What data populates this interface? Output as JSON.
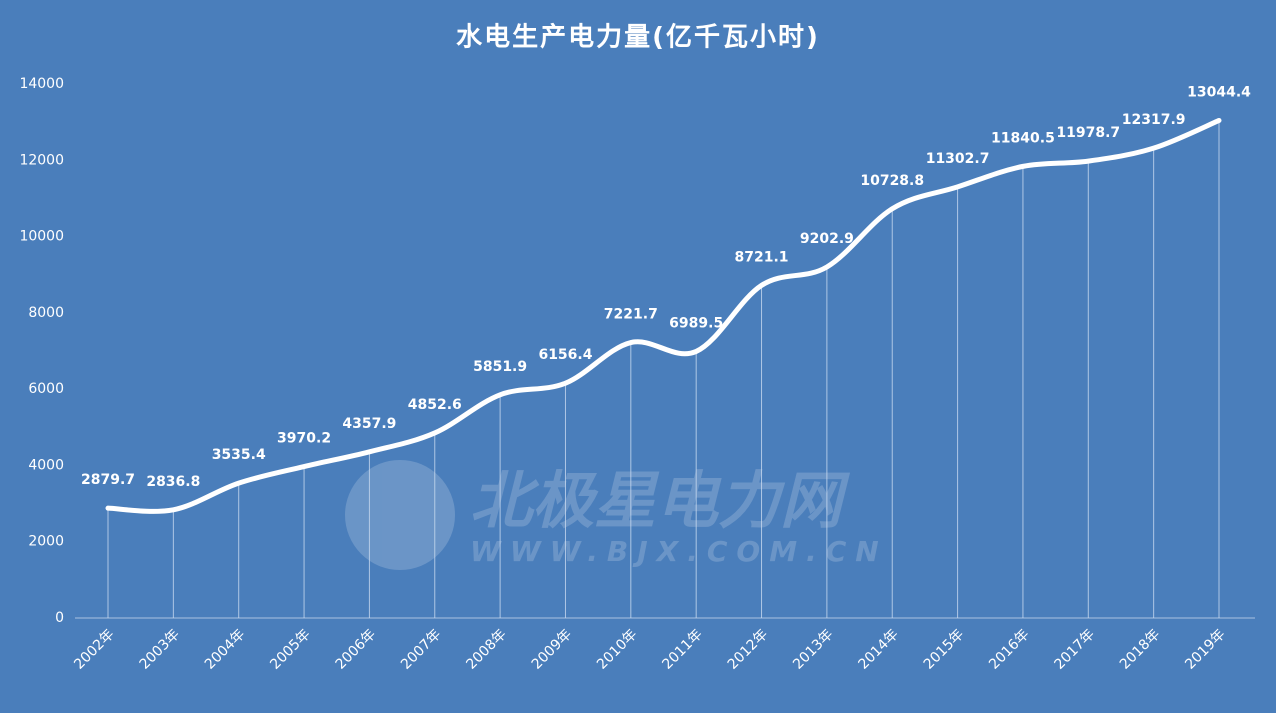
{
  "chart_data": {
    "type": "line",
    "title": "水电生产电力量(亿千瓦小时)",
    "categories": [
      "2002年",
      "2003年",
      "2004年",
      "2005年",
      "2006年",
      "2007年",
      "2008年",
      "2009年",
      "2010年",
      "2011年",
      "2012年",
      "2013年",
      "2014年",
      "2015年",
      "2016年",
      "2017年",
      "2018年",
      "2019年"
    ],
    "values": [
      2879.7,
      2836.8,
      3535.4,
      3970.2,
      4357.9,
      4852.6,
      5851.9,
      6156.4,
      7221.7,
      6989.5,
      8721.1,
      9202.9,
      10728.8,
      11302.7,
      11840.5,
      11978.7,
      12317.9,
      13044.4
    ],
    "color": "#ffffff",
    "ylim": [
      0,
      14000
    ],
    "yticks": [
      0,
      2000,
      4000,
      6000,
      8000,
      10000,
      12000,
      14000
    ],
    "grid": false,
    "watermark": [
      "北极星电力网",
      "WWW.BJX.COM.CN"
    ]
  }
}
